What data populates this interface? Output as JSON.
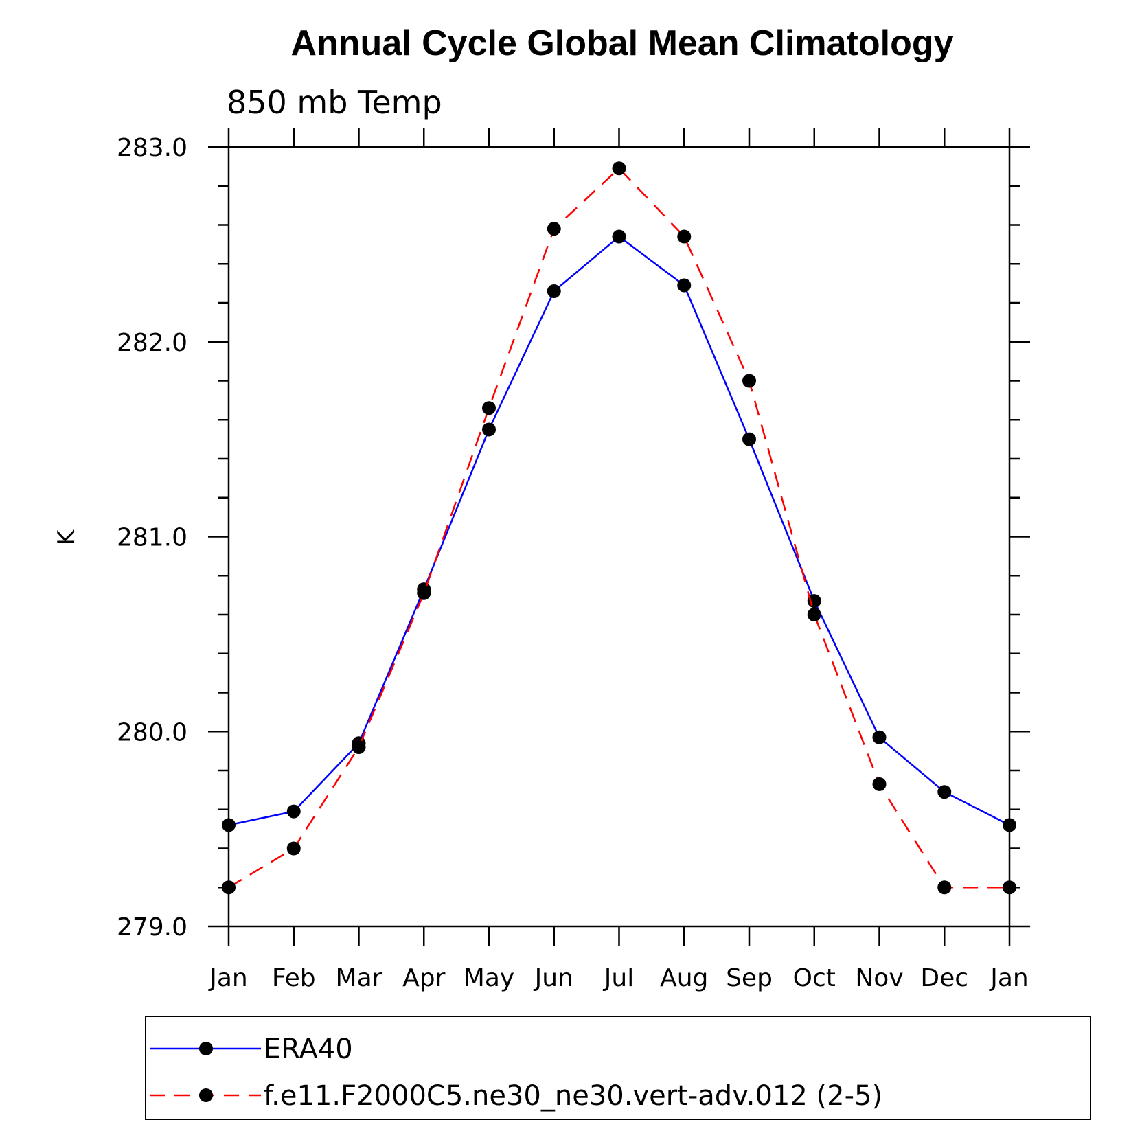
{
  "chart_data": {
    "type": "line",
    "title": "Annual Cycle Global Mean Climatology",
    "subtitle": "850 mb Temp",
    "ylabel": "K",
    "xlabel": "",
    "categories": [
      "Jan",
      "Feb",
      "Mar",
      "Apr",
      "May",
      "Jun",
      "Jul",
      "Aug",
      "Sep",
      "Oct",
      "Nov",
      "Dec",
      "Jan"
    ],
    "ylim": [
      279.0,
      283.0
    ],
    "yticks": [
      279.0,
      280.0,
      281.0,
      282.0,
      283.0
    ],
    "ytick_labels": [
      "279.0",
      "280.0",
      "281.0",
      "282.0",
      "283.0"
    ],
    "y_minor_step": 0.2,
    "grid": false,
    "legend_position": "bottom",
    "series": [
      {
        "name": "ERA40",
        "color": "#0000ff",
        "dash": "solid",
        "marker": "filled-circle",
        "values": [
          279.52,
          279.59,
          279.94,
          280.73,
          281.55,
          282.26,
          282.54,
          282.29,
          281.5,
          280.67,
          279.97,
          279.69,
          279.52
        ]
      },
      {
        "name": "f.e11.F2000C5.ne30_ne30.vert-adv.012 (2-5)",
        "color": "#ff0000",
        "dash": "dashed",
        "marker": "filled-circle",
        "values": [
          279.2,
          279.4,
          279.92,
          280.71,
          281.66,
          282.58,
          282.89,
          282.54,
          281.8,
          280.6,
          279.73,
          279.2,
          279.2
        ]
      }
    ]
  }
}
